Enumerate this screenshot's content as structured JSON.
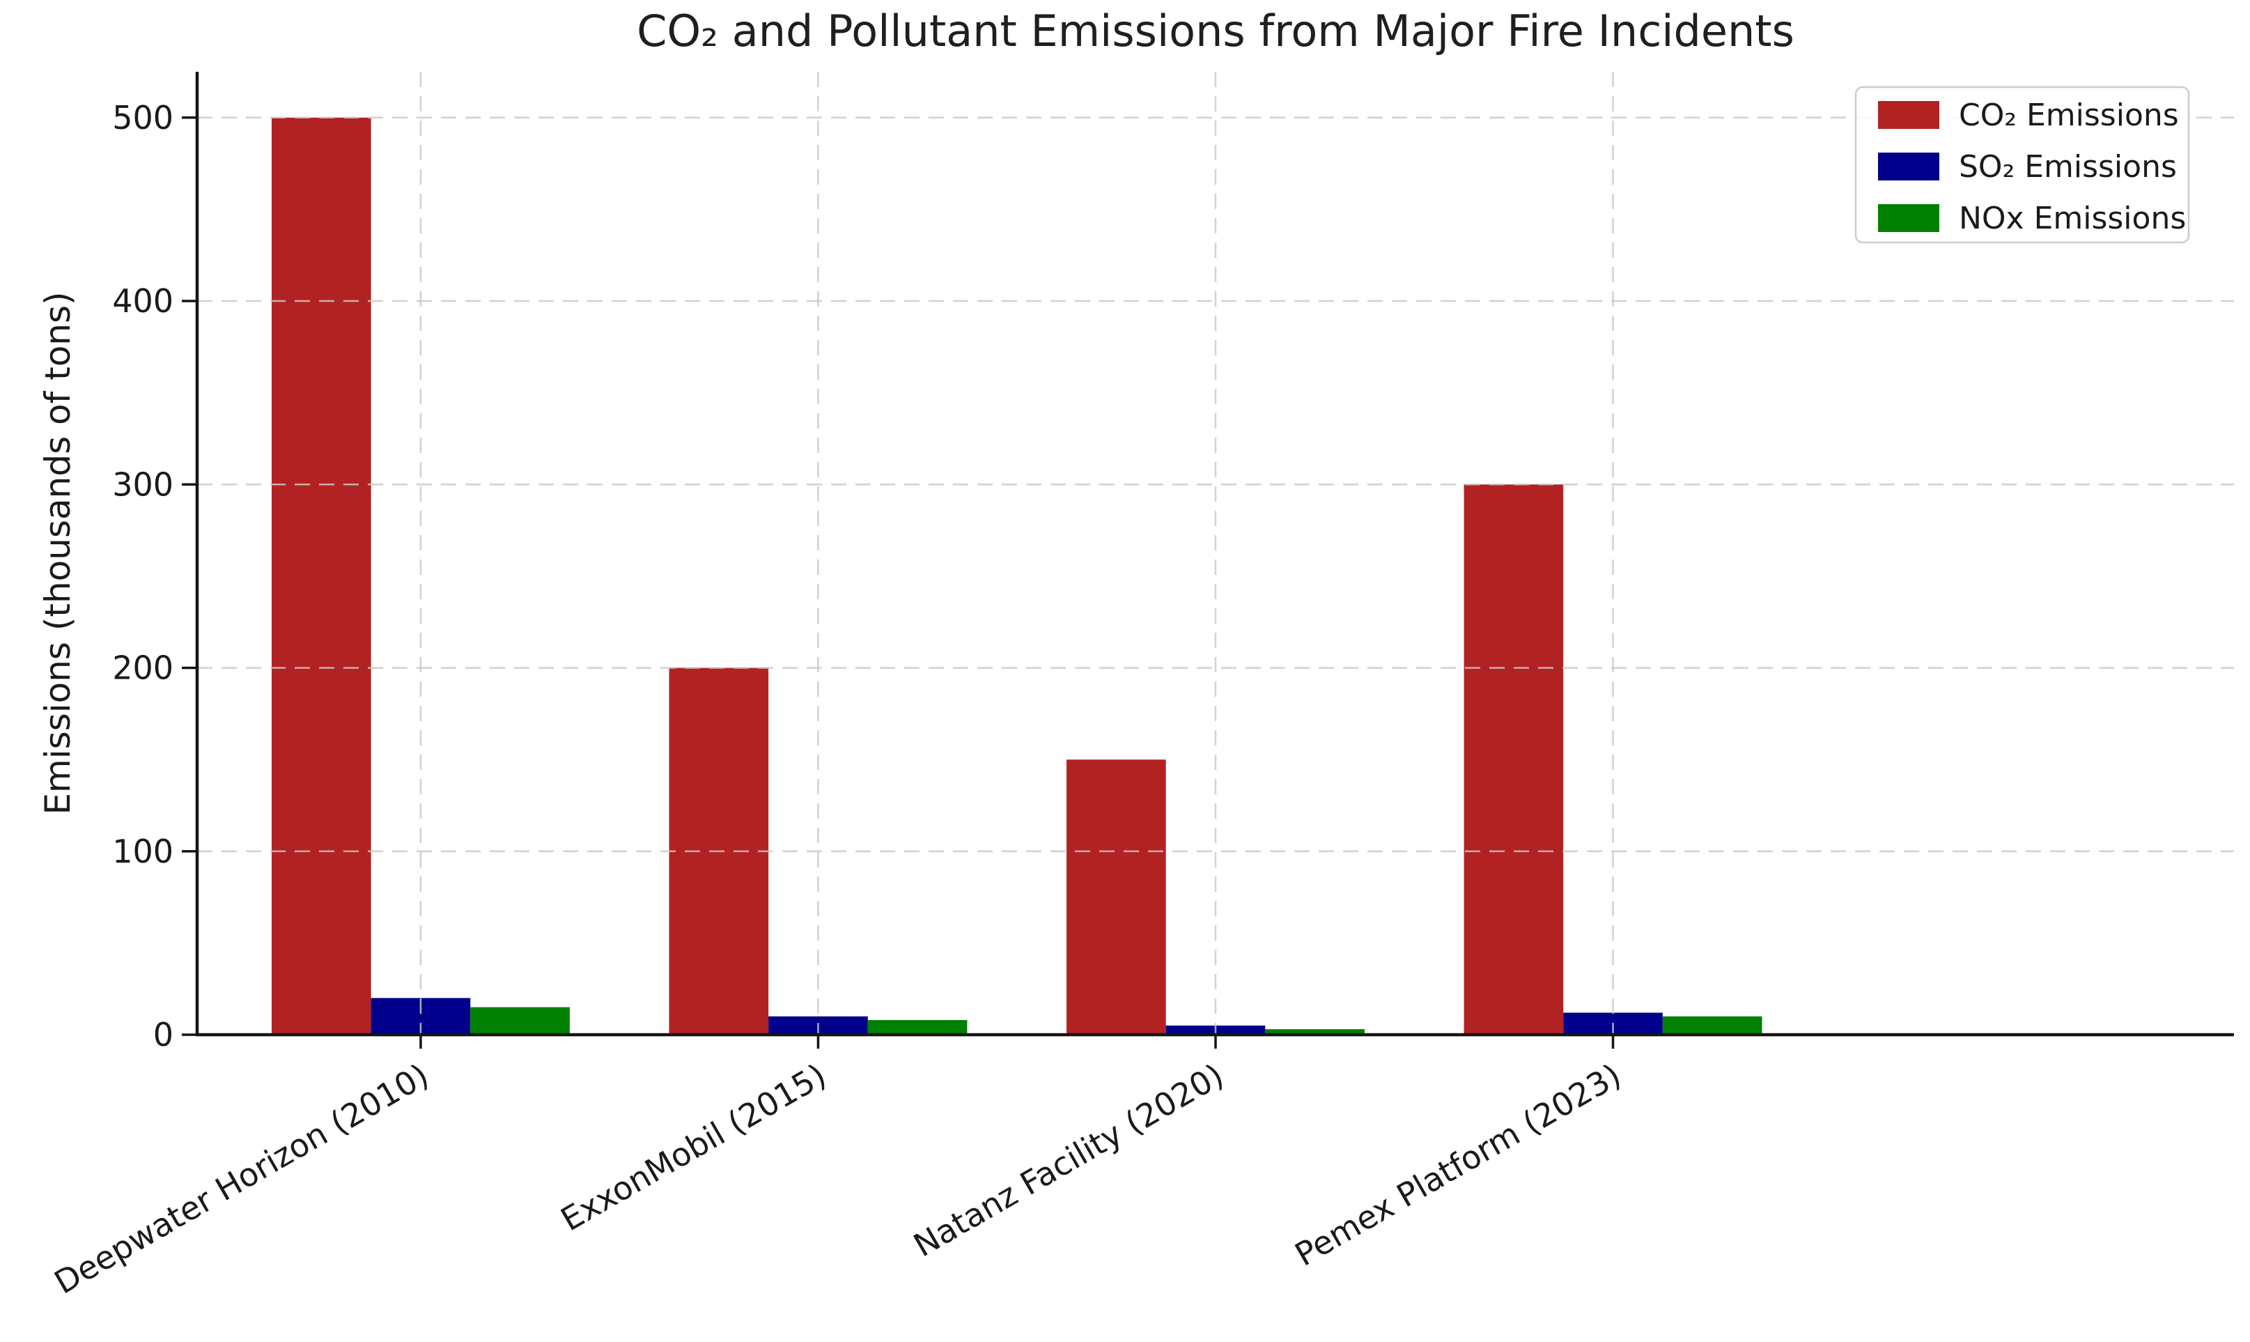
{
  "chart_data": {
    "type": "bar",
    "title": "CO₂ and Pollutant Emissions from Major Fire Incidents",
    "xlabel": "",
    "ylabel": "Emissions (thousands of tons)",
    "categories": [
      "Deepwater Horizon (2010)",
      "ExxonMobil (2015)",
      "Natanz Facility (2020)",
      "Pemex Platform (2023)"
    ],
    "series": [
      {
        "key": "co2",
        "name": "CO₂ Emissions",
        "color": "#B22222",
        "values": [
          500,
          200,
          150,
          300
        ]
      },
      {
        "key": "so2",
        "name": "SO₂ Emissions",
        "color": "#00008B",
        "values": [
          20,
          10,
          5,
          12
        ]
      },
      {
        "key": "nox",
        "name": "NOx Emissions",
        "color": "#008000",
        "values": [
          15,
          8,
          3,
          10
        ]
      }
    ],
    "ylim": [
      0,
      525
    ],
    "yticks": [
      0,
      100,
      200,
      300,
      400,
      500
    ],
    "grid": true,
    "grid_style": "dashed",
    "grid_on_top_of_bars": true,
    "legend_position": "upper right",
    "x_tick_rotation_deg": -30,
    "bar_width_fraction": 0.25
  },
  "colors": {
    "background": "#ffffff",
    "spine": "#151515",
    "grid": "#c9c9c9",
    "text": "#1a1a1a",
    "legend_border": "#cccccc"
  }
}
